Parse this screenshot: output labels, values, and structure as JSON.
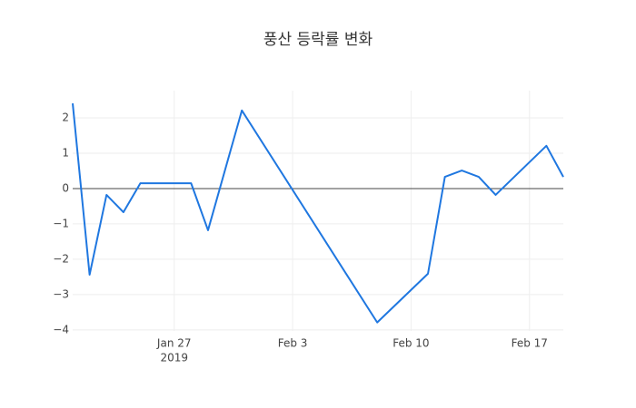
{
  "chart_data": {
    "type": "line",
    "title": "풍산 등락률 변화",
    "x": [
      "2019-01-21",
      "2019-01-22",
      "2019-01-23",
      "2019-01-24",
      "2019-01-25",
      "2019-01-28",
      "2019-01-29",
      "2019-01-31",
      "2019-02-08",
      "2019-02-11",
      "2019-02-12",
      "2019-02-13",
      "2019-02-14",
      "2019-02-15",
      "2019-02-18",
      "2019-02-19"
    ],
    "series": [
      {
        "color": "#1f77e0",
        "values": [
          2.41,
          -2.44,
          -0.18,
          -0.67,
          0.15,
          0.15,
          -1.18,
          2.21,
          -3.79,
          -2.41,
          0.33,
          0.51,
          0.33,
          -0.18,
          1.21,
          0.33
        ]
      }
    ],
    "xlim": [
      "2019-01-21",
      "2019-02-19"
    ],
    "xticks": [
      {
        "value": "2019-01-27",
        "label": "Jan 27"
      },
      {
        "value": "2019-02-03",
        "label": "Feb 3"
      },
      {
        "value": "2019-02-10",
        "label": "Feb 10"
      },
      {
        "value": "2019-02-17",
        "label": "Feb 17"
      }
    ],
    "xtick_year": "2019",
    "ylim": [
      -4.03,
      2.77
    ],
    "yticks": [
      {
        "value": -4,
        "label": "−4"
      },
      {
        "value": -3,
        "label": "−3"
      },
      {
        "value": -2,
        "label": "−2"
      },
      {
        "value": -1,
        "label": "−1"
      },
      0,
      1,
      2
    ],
    "grid": true
  }
}
